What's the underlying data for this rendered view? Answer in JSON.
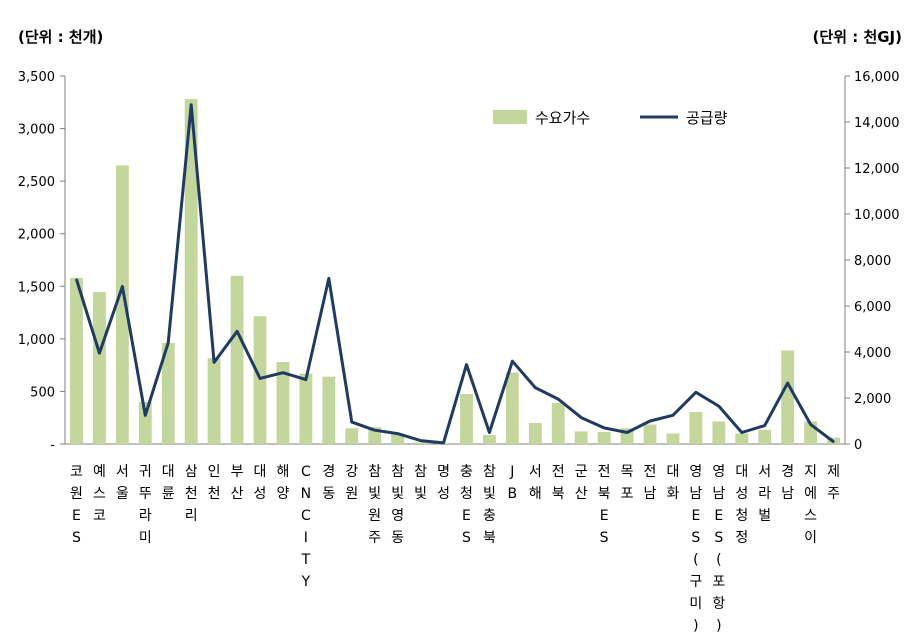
{
  "unit_left": "(단위 : 천개)",
  "unit_right": "(단위 : 천GJ)",
  "chart_data": {
    "type": "bar",
    "categories": [
      "코원ES",
      "예스코",
      "서울",
      "귀뚜라미",
      "대륜",
      "삼천리",
      "인천",
      "부산",
      "대성",
      "해양",
      "CNCITY",
      "경동",
      "강원",
      "참빛원주",
      "참빛영동",
      "참빛",
      "명성",
      "충청ES",
      "참빛충북",
      "JB",
      "서해",
      "전북",
      "군산",
      "전북ES",
      "목포",
      "전남",
      "대화",
      "영남ES(구미)",
      "영남ES(포항)",
      "대성청정",
      "서라벌",
      "경남",
      "지에스이",
      "제주"
    ],
    "category_lines": [
      [
        "코",
        "원",
        "E",
        "S"
      ],
      [
        "예",
        "스",
        "코"
      ],
      [
        "서",
        "울"
      ],
      [
        "귀",
        "뚜",
        "라",
        "미"
      ],
      [
        "대",
        "륜"
      ],
      [
        "삼",
        "천",
        "리"
      ],
      [
        "인",
        "천"
      ],
      [
        "부",
        "산"
      ],
      [
        "대",
        "성"
      ],
      [
        "해",
        "양"
      ],
      [
        "C",
        "N",
        "C",
        "I",
        "T",
        "Y"
      ],
      [
        "경",
        "동"
      ],
      [
        "강",
        "원"
      ],
      [
        "참",
        "빛",
        "원",
        "주"
      ],
      [
        "참",
        "빛",
        "영",
        "동"
      ],
      [
        "참",
        "빛"
      ],
      [
        "명",
        "성"
      ],
      [
        "충",
        "청",
        "E",
        "S"
      ],
      [
        "참",
        "빛",
        "충",
        "북"
      ],
      [
        "J",
        "B"
      ],
      [
        "서",
        "해"
      ],
      [
        "전",
        "북"
      ],
      [
        "군",
        "산"
      ],
      [
        "전",
        "북",
        "E",
        "S"
      ],
      [
        "목",
        "포"
      ],
      [
        "전",
        "남"
      ],
      [
        "대",
        "화"
      ],
      [
        "영",
        "남",
        "E",
        "S",
        "(",
        "구",
        "미",
        ")"
      ],
      [
        "영",
        "남",
        "E",
        "S",
        "(",
        "포",
        "항",
        ")"
      ],
      [
        "대",
        "성",
        "청",
        "정"
      ],
      [
        "서",
        "라",
        "벌"
      ],
      [
        "경",
        "남"
      ],
      [
        "지",
        "에",
        "스",
        "이"
      ],
      [
        "제",
        "주"
      ]
    ],
    "series": [
      {
        "name": "수요가수",
        "type": "bar",
        "axis": "left",
        "values": [
          1580,
          1445,
          2650,
          400,
          960,
          3280,
          815,
          1600,
          1215,
          780,
          670,
          640,
          150,
          160,
          95,
          15,
          10,
          475,
          85,
          680,
          200,
          390,
          120,
          115,
          150,
          185,
          100,
          305,
          215,
          100,
          135,
          890,
          215,
          60
        ]
      },
      {
        "name": "공급량",
        "type": "line",
        "axis": "right",
        "values": [
          7150,
          3950,
          6850,
          1250,
          4400,
          14750,
          3550,
          4900,
          2850,
          3100,
          2800,
          7200,
          950,
          600,
          450,
          150,
          50,
          3450,
          500,
          3600,
          2450,
          1950,
          1150,
          700,
          500,
          1000,
          1250,
          2250,
          1650,
          500,
          800,
          2650,
          850,
          100
        ]
      }
    ],
    "y_left": {
      "min": 0,
      "max": 3500,
      "ticks": [
        "-",
        "500",
        "1,000",
        "1,500",
        "2,000",
        "2,500",
        "3,000",
        "3,500"
      ]
    },
    "y_right": {
      "min": 0,
      "max": 16000,
      "ticks": [
        "0",
        "2,000",
        "4,000",
        "6,000",
        "8,000",
        "10,000",
        "12,000",
        "14,000",
        "16,000"
      ]
    },
    "legend_position": "top-right",
    "grid": false,
    "colors": {
      "bar": "#c3d69b",
      "line": "#1f3b63",
      "axis": "#808080"
    }
  }
}
